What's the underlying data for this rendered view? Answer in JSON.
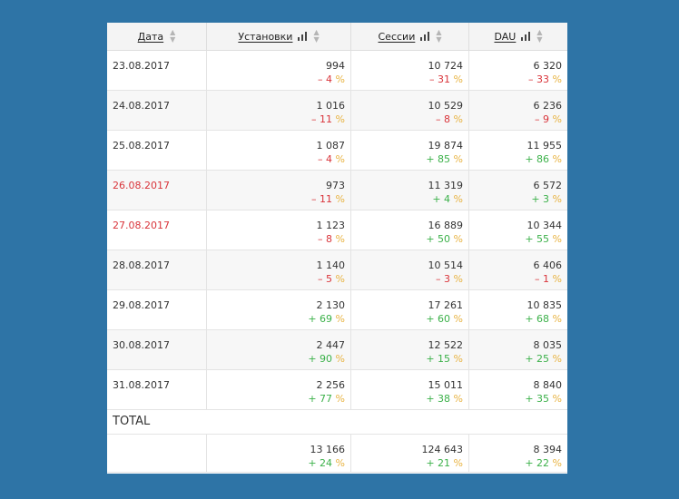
{
  "table": {
    "headers": {
      "date": "Дата",
      "installs": "Установки",
      "sessions": "Сессии",
      "dau": "DAU"
    },
    "rows": [
      {
        "date": "23.08.2017",
        "holiday": false,
        "installs": {
          "value": "994",
          "sign": "–",
          "change": "4",
          "dir": "neg"
        },
        "sessions": {
          "value": "10 724",
          "sign": "–",
          "change": "31",
          "dir": "neg"
        },
        "dau": {
          "value": "6 320",
          "sign": "–",
          "change": "33",
          "dir": "neg"
        }
      },
      {
        "date": "24.08.2017",
        "holiday": false,
        "installs": {
          "value": "1 016",
          "sign": "–",
          "change": "11",
          "dir": "neg"
        },
        "sessions": {
          "value": "10 529",
          "sign": "–",
          "change": "8",
          "dir": "neg"
        },
        "dau": {
          "value": "6 236",
          "sign": "–",
          "change": "9",
          "dir": "neg"
        }
      },
      {
        "date": "25.08.2017",
        "holiday": false,
        "installs": {
          "value": "1 087",
          "sign": "–",
          "change": "4",
          "dir": "neg"
        },
        "sessions": {
          "value": "19 874",
          "sign": "+",
          "change": "85",
          "dir": "pos"
        },
        "dau": {
          "value": "11 955",
          "sign": "+",
          "change": "86",
          "dir": "pos"
        }
      },
      {
        "date": "26.08.2017",
        "holiday": true,
        "installs": {
          "value": "973",
          "sign": "–",
          "change": "11",
          "dir": "neg"
        },
        "sessions": {
          "value": "11 319",
          "sign": "+",
          "change": "4",
          "dir": "pos"
        },
        "dau": {
          "value": "6 572",
          "sign": "+",
          "change": "3",
          "dir": "pos"
        }
      },
      {
        "date": "27.08.2017",
        "holiday": true,
        "installs": {
          "value": "1 123",
          "sign": "–",
          "change": "8",
          "dir": "neg"
        },
        "sessions": {
          "value": "16 889",
          "sign": "+",
          "change": "50",
          "dir": "pos"
        },
        "dau": {
          "value": "10 344",
          "sign": "+",
          "change": "55",
          "dir": "pos"
        }
      },
      {
        "date": "28.08.2017",
        "holiday": false,
        "installs": {
          "value": "1 140",
          "sign": "–",
          "change": "5",
          "dir": "neg"
        },
        "sessions": {
          "value": "10 514",
          "sign": "–",
          "change": "3",
          "dir": "neg"
        },
        "dau": {
          "value": "6 406",
          "sign": "–",
          "change": "1",
          "dir": "neg"
        }
      },
      {
        "date": "29.08.2017",
        "holiday": false,
        "installs": {
          "value": "2 130",
          "sign": "+",
          "change": "69",
          "dir": "pos"
        },
        "sessions": {
          "value": "17 261",
          "sign": "+",
          "change": "60",
          "dir": "pos"
        },
        "dau": {
          "value": "10 835",
          "sign": "+",
          "change": "68",
          "dir": "pos"
        }
      },
      {
        "date": "30.08.2017",
        "holiday": false,
        "installs": {
          "value": "2 447",
          "sign": "+",
          "change": "90",
          "dir": "pos"
        },
        "sessions": {
          "value": "12 522",
          "sign": "+",
          "change": "15",
          "dir": "pos"
        },
        "dau": {
          "value": "8 035",
          "sign": "+",
          "change": "25",
          "dir": "pos"
        }
      },
      {
        "date": "31.08.2017",
        "holiday": false,
        "installs": {
          "value": "2 256",
          "sign": "+",
          "change": "77",
          "dir": "pos"
        },
        "sessions": {
          "value": "15 011",
          "sign": "+",
          "change": "38",
          "dir": "pos"
        },
        "dau": {
          "value": "8 840",
          "sign": "+",
          "change": "35",
          "dir": "pos"
        }
      }
    ],
    "total_label": "TOTAL",
    "total": {
      "installs": {
        "value": "13 166",
        "sign": "+",
        "change": "24",
        "dir": "pos"
      },
      "sessions": {
        "value": "124 643",
        "sign": "+",
        "change": "21",
        "dir": "pos"
      },
      "dau": {
        "value": "8 394",
        "sign": "+",
        "change": "22",
        "dir": "pos"
      }
    },
    "percent_symbol": "%"
  },
  "colors": {
    "background": "#2e74a6",
    "negative": "#d9343a",
    "positive": "#3cb14a",
    "percent": "#e8b341",
    "holiday_date": "#d9343a"
  },
  "icons": {
    "chart": "bar-chart-icon",
    "sort": "sort-icon"
  }
}
